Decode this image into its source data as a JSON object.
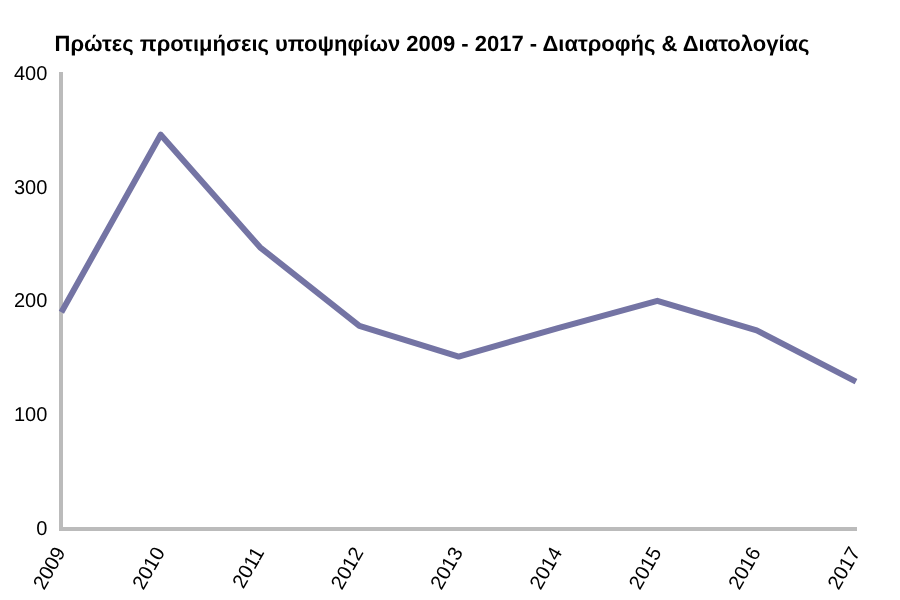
{
  "chart_data": {
    "type": "line",
    "title": "Πρώτες προτιμήσεις υποψηφίων 2009 - 2017 - Διατροφής & Διατολογίας",
    "categories": [
      "2009",
      "2010",
      "2011",
      "2012",
      "2013",
      "2014",
      "2015",
      "2016",
      "2017"
    ],
    "series": [
      {
        "color": "#7474a4",
        "values": [
          191,
          347,
          248,
          179,
          152,
          177,
          201,
          175,
          130
        ]
      }
    ],
    "ylim": [
      0,
      400
    ],
    "yticks": [
      0,
      100,
      200,
      300,
      400
    ],
    "grid": false,
    "legend": false,
    "marker": "none",
    "line_style": "solid"
  }
}
